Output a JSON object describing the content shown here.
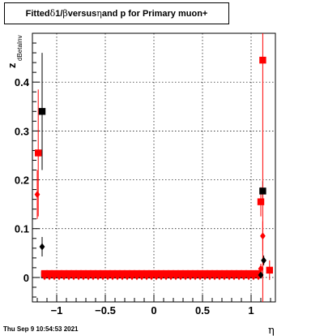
{
  "title": {
    "prefix": "Fitted ",
    "delta": "δ",
    "mid1": " 1/",
    "beta": "β",
    "mid2": " versus ",
    "eta": "η",
    "suffix": " and p for Primary muon+"
  },
  "footer": "Thu Sep  9 10:54:53 2021",
  "chart_data": {
    "type": "scatter",
    "title": "Fitted δ 1/β versus η and p for Primary muon+",
    "xlabel": "η",
    "ylabel_main": "z",
    "ylabel_sub": "dBetaInv",
    "xlim": [
      -1.25,
      1.25
    ],
    "ylim": [
      -0.05,
      0.5
    ],
    "xticks": [
      -1,
      -0.5,
      0,
      0.5,
      1
    ],
    "xtick_labels": [
      "−1",
      "−0.5",
      "0",
      "0.5",
      "1"
    ],
    "yticks": [
      0,
      0.1,
      0.2,
      0.3,
      0.4
    ],
    "ytick_labels": [
      "0",
      "0.1",
      "0.2",
      "0.3",
      "0.4"
    ],
    "grid": true,
    "series": [
      {
        "marker": "square",
        "color": "#000000",
        "points": [
          {
            "x": -1.15,
            "y": 0.34,
            "err": 0.12
          },
          {
            "x": 1.12,
            "y": 0.177,
            "err": 0.02
          }
        ]
      },
      {
        "marker": "diamond",
        "color": "#000000",
        "points": [
          {
            "x": -1.15,
            "y": 0.063,
            "err": 0.02
          },
          {
            "x": 1.13,
            "y": 0.035,
            "err": 0.01
          },
          {
            "x": 1.1,
            "y": 0.005,
            "err": 0.005
          }
        ]
      },
      {
        "marker": "square",
        "color": "#ff0000",
        "points": [
          {
            "x": -1.19,
            "y": 0.255,
            "err": 0.13
          },
          {
            "x": 1.1,
            "y": 0.155,
            "err": 0.03
          },
          {
            "x": 1.12,
            "y": 0.445,
            "err": 0.5
          },
          {
            "x": 1.19,
            "y": 0.015,
            "err": 0.02
          }
        ]
      },
      {
        "marker": "diamond",
        "color": "#ff0000",
        "points": [
          {
            "x": -1.2,
            "y": 0.17,
            "err": 0.05
          },
          {
            "x": 1.12,
            "y": 0.085,
            "err": 0.03
          },
          {
            "x": 1.1,
            "y": 0.018,
            "err": 0.01
          }
        ]
      }
    ],
    "band": {
      "xstart": -1.125,
      "xend": 1.075,
      "step": 0.05,
      "square_y": 0.008,
      "diamond_y": 0.002,
      "square_color": "#ff0000",
      "diamond_color": "#ff0000",
      "underlay_color": "#000000"
    }
  }
}
